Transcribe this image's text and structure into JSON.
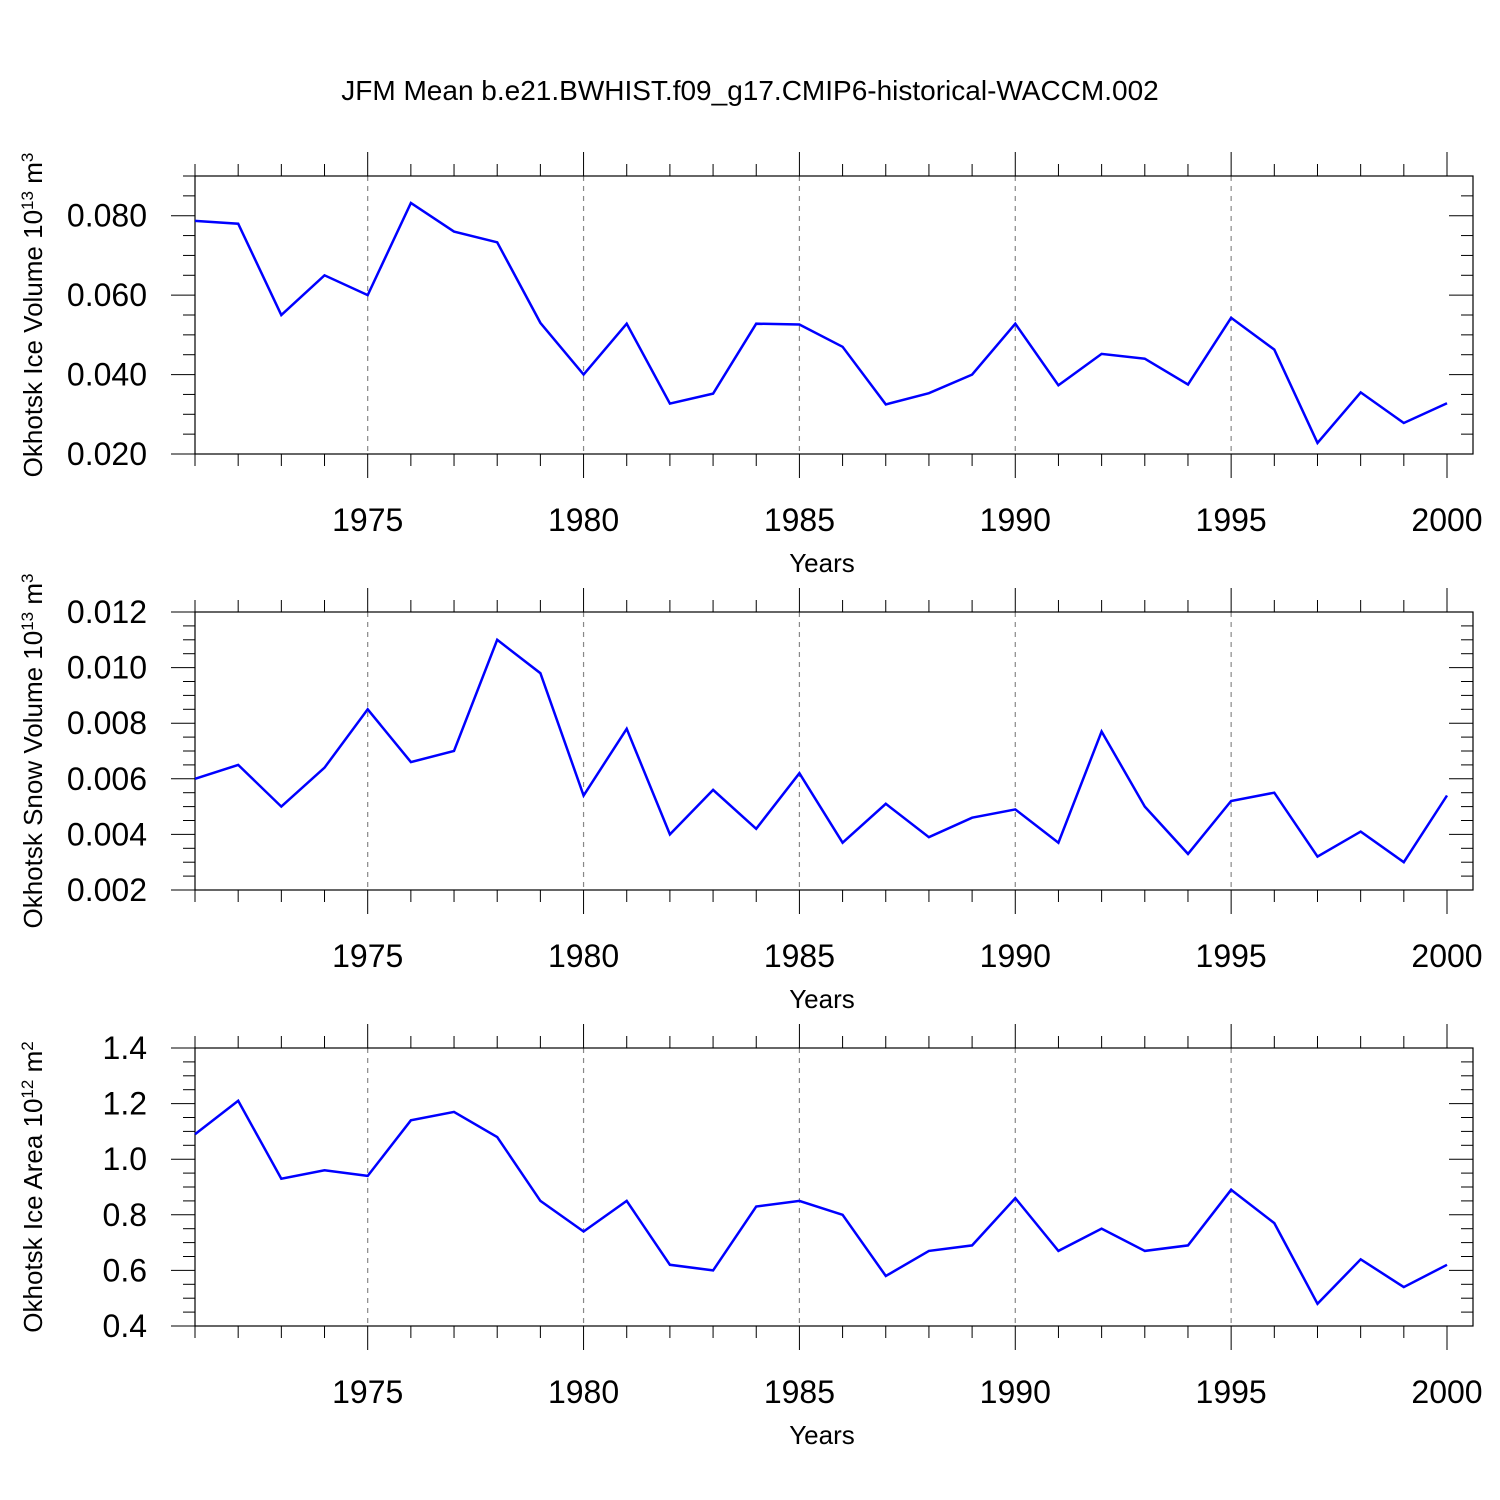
{
  "title": "JFM Mean b.e21.BWHIST.f09_g17.CMIP6-historical-WACCM.002",
  "line_color": "#0000ff",
  "grid_color": "#888888",
  "chart_data": [
    {
      "type": "line",
      "ylabel": {
        "text": "Okhotsk Ice Volume 10",
        "sup": "13",
        "unit": " m",
        "unit_sup": "3"
      },
      "xlabel": "Years",
      "xlim": [
        1971,
        2000
      ],
      "ylim": [
        0.02,
        0.09
      ],
      "yticks": [
        0.02,
        0.04,
        0.06,
        0.08
      ],
      "ytick_labels": [
        "0.020",
        "0.040",
        "0.060",
        "0.080"
      ],
      "yminor_step": 0.005,
      "xticks": [
        1975,
        1980,
        1985,
        1990,
        1995,
        2000
      ],
      "xtick_labels": [
        "1975",
        "1980",
        "1985",
        "1990",
        "1995",
        "2000"
      ],
      "grid": "vertical dashed at major x ticks",
      "x": [
        1971,
        1972,
        1973,
        1974,
        1975,
        1976,
        1977,
        1978,
        1979,
        1980,
        1981,
        1982,
        1983,
        1984,
        1985,
        1986,
        1987,
        1988,
        1989,
        1990,
        1991,
        1992,
        1993,
        1994,
        1995,
        1996,
        1997,
        1998,
        1999,
        2000
      ],
      "values": [
        0.0787,
        0.078,
        0.055,
        0.065,
        0.06,
        0.0832,
        0.076,
        0.0733,
        0.053,
        0.04,
        0.0528,
        0.0327,
        0.0352,
        0.0528,
        0.0526,
        0.047,
        0.0325,
        0.0353,
        0.04,
        0.0528,
        0.0373,
        0.0452,
        0.044,
        0.0375,
        0.0543,
        0.0463,
        0.0228,
        0.0355,
        0.0278,
        0.0328
      ]
    },
    {
      "type": "line",
      "ylabel": {
        "text": "Okhotsk Snow Volume 10",
        "sup": "13",
        "unit": " m",
        "unit_sup": "3"
      },
      "xlabel": "Years",
      "xlim": [
        1971,
        2000
      ],
      "ylim": [
        0.002,
        0.012
      ],
      "yticks": [
        0.002,
        0.004,
        0.006,
        0.008,
        0.01,
        0.012
      ],
      "ytick_labels": [
        "0.002",
        "0.004",
        "0.006",
        "0.008",
        "0.010",
        "0.012"
      ],
      "yminor_step": 0.0005,
      "xticks": [
        1975,
        1980,
        1985,
        1990,
        1995,
        2000
      ],
      "xtick_labels": [
        "1975",
        "1980",
        "1985",
        "1990",
        "1995",
        "2000"
      ],
      "grid": "vertical dashed at major x ticks",
      "x": [
        1971,
        1972,
        1973,
        1974,
        1975,
        1976,
        1977,
        1978,
        1979,
        1980,
        1981,
        1982,
        1983,
        1984,
        1985,
        1986,
        1987,
        1988,
        1989,
        1990,
        1991,
        1992,
        1993,
        1994,
        1995,
        1996,
        1997,
        1998,
        1999,
        2000
      ],
      "values": [
        0.006,
        0.0065,
        0.005,
        0.0064,
        0.0085,
        0.0066,
        0.007,
        0.011,
        0.0098,
        0.0054,
        0.0078,
        0.004,
        0.0056,
        0.0042,
        0.0062,
        0.0037,
        0.0051,
        0.0039,
        0.0046,
        0.0049,
        0.0037,
        0.0077,
        0.005,
        0.0033,
        0.0052,
        0.0055,
        0.0032,
        0.0041,
        0.003,
        0.0054
      ]
    },
    {
      "type": "line",
      "ylabel": {
        "text": "Okhotsk Ice Area 10",
        "sup": "12",
        "unit": " m",
        "unit_sup": "2"
      },
      "xlabel": "Years",
      "xlim": [
        1971,
        2000
      ],
      "ylim": [
        0.4,
        1.4
      ],
      "yticks": [
        0.4,
        0.6,
        0.8,
        1.0,
        1.2,
        1.4
      ],
      "ytick_labels": [
        "0.4",
        "0.6",
        "0.8",
        "1.0",
        "1.2",
        "1.4"
      ],
      "yminor_step": 0.05,
      "xticks": [
        1975,
        1980,
        1985,
        1990,
        1995,
        2000
      ],
      "xtick_labels": [
        "1975",
        "1980",
        "1985",
        "1990",
        "1995",
        "2000"
      ],
      "grid": "vertical dashed at major x ticks",
      "x": [
        1971,
        1972,
        1973,
        1974,
        1975,
        1976,
        1977,
        1978,
        1979,
        1980,
        1981,
        1982,
        1983,
        1984,
        1985,
        1986,
        1987,
        1988,
        1989,
        1990,
        1991,
        1992,
        1993,
        1994,
        1995,
        1996,
        1997,
        1998,
        1999,
        2000
      ],
      "values": [
        1.09,
        1.21,
        0.93,
        0.96,
        0.94,
        1.14,
        1.17,
        1.08,
        0.85,
        0.74,
        0.85,
        0.62,
        0.6,
        0.83,
        0.85,
        0.8,
        0.58,
        0.67,
        0.69,
        0.86,
        0.67,
        0.75,
        0.67,
        0.69,
        0.89,
        0.77,
        0.48,
        0.64,
        0.54,
        0.62
      ]
    }
  ]
}
